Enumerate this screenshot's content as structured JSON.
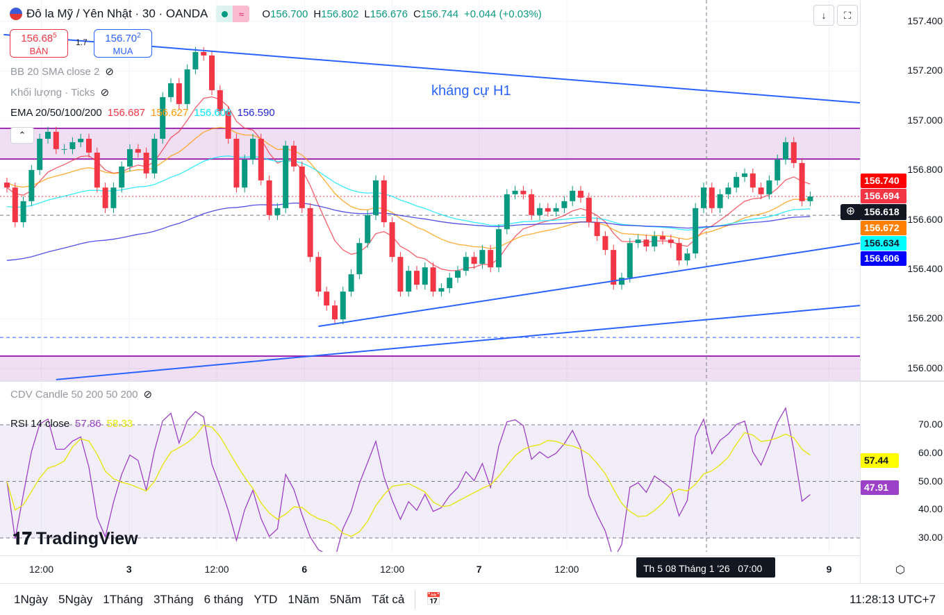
{
  "header": {
    "symbol": "Đô la Mỹ / Yên Nhật · 30 · OANDA",
    "open_label": "O",
    "open": "156.700",
    "high_label": "H",
    "high": "156.802",
    "low_label": "L",
    "low": "156.676",
    "close_label": "C",
    "close": "156.744",
    "change": "+0.044 (+0.03%)",
    "market_status_color": "#089981",
    "icons": [
      "flag-icon",
      "market-open-dot-icon",
      "delay-icon",
      "download-arrow-icon",
      "fullscreen-icon"
    ]
  },
  "trade": {
    "sell_price": "156.68",
    "sell_sup": "5",
    "sell_label": "BÁN",
    "spread": "1.7",
    "buy_price": "156.70",
    "buy_sup": "2",
    "buy_label": "MUA"
  },
  "legend": {
    "bb": "BB 20 SMA close 2",
    "volume": "Khối lượng · Ticks",
    "ema_title": "EMA 20/50/100/200",
    "ema20": "156.687",
    "ema50": "156.627",
    "ema100": "156.606",
    "ema200": "156.590",
    "cdv": "CDV Candle 50 200 50 200",
    "rsi_title": "RSI 14 close",
    "rsi_value": "57.86",
    "rsi_ma": "58.33"
  },
  "annotation": "kháng cự H1",
  "price_labels": [
    {
      "text": "156.740",
      "color": "#ff0000"
    },
    {
      "text": "156.694",
      "color": "#f23645"
    },
    {
      "text": "156.672",
      "color": "#ff7f00"
    },
    {
      "text": "156.634",
      "color": "#00ffff"
    },
    {
      "text": "156.606",
      "color": "#0000ff"
    }
  ],
  "crosshair_price": "156.618",
  "rsi_labels": [
    {
      "text": "57.44",
      "color": "#ffff00"
    },
    {
      "text": "47.91",
      "color": "#9c40c8"
    }
  ],
  "time_tooltip": "Th 5 08 Tháng 1 '26   07:00",
  "clock": "11:28:13 UTC+7",
  "ranges": [
    "1Ngày",
    "5Ngày",
    "1Tháng",
    "3Tháng",
    "6 tháng",
    "YTD",
    "1Năm",
    "5Năm",
    "Tất cả"
  ],
  "watermark": "TradingView",
  "chart_data": [
    {
      "type": "candlestick",
      "ylim": [
        155.95,
        157.45
      ],
      "y_ticks": [
        "157.400",
        "157.200",
        "157.000",
        "156.800",
        "156.600",
        "156.400",
        "156.200",
        "156.000"
      ],
      "x_ticks": [
        {
          "label": "12:00",
          "i": 4.2
        },
        {
          "label": "3",
          "i": 14.9,
          "bold": true
        },
        {
          "label": "12:00",
          "i": 25.6
        },
        {
          "label": "6",
          "i": 36.3,
          "bold": true
        },
        {
          "label": "12:00",
          "i": 47
        },
        {
          "label": "7",
          "i": 57.6,
          "bold": true
        },
        {
          "label": "12:00",
          "i": 68.3
        },
        {
          "label": "9",
          "i": 100.3,
          "bold": true
        }
      ],
      "up_color": "#089981",
      "down_color": "#f23645",
      "close": [
        156.73,
        156.59,
        156.675,
        156.801,
        156.927,
        156.955,
        156.885,
        156.885,
        156.913,
        156.927,
        156.871,
        156.73,
        156.647,
        156.73,
        156.815,
        156.885,
        156.871,
        156.787,
        156.927,
        157.095,
        157.151,
        157.067,
        157.207,
        157.277,
        157.263,
        157.123,
        157.039,
        156.927,
        156.73,
        156.843,
        156.927,
        156.759,
        156.619,
        156.647,
        156.899,
        156.815,
        156.647,
        156.45,
        156.31,
        156.254,
        156.198,
        156.31,
        156.38,
        156.506,
        156.619,
        156.759,
        156.59,
        156.45,
        156.31,
        156.394,
        156.338,
        156.408,
        156.31,
        156.324,
        156.366,
        156.394,
        156.45,
        156.422,
        156.478,
        156.408,
        156.562,
        156.703,
        156.717,
        156.703,
        156.619,
        156.647,
        156.633,
        156.647,
        156.675,
        156.717,
        156.689,
        156.59,
        156.534,
        156.478,
        156.338,
        156.366,
        156.506,
        156.52,
        156.492,
        156.534,
        156.52,
        156.506,
        156.436,
        156.464,
        156.647,
        156.73,
        156.647,
        156.703,
        156.73,
        156.773,
        156.787,
        156.73,
        156.703,
        156.759,
        156.843,
        156.913,
        156.829,
        156.675,
        156.694
      ],
      "ema_periods": [
        20,
        50,
        100,
        200
      ],
      "ema_colors": [
        "#f23645",
        "#ff9800",
        "#00e5ff",
        "#2424e0"
      ],
      "trendlines": [
        {
          "from": {
            "i": -0.4,
            "p": 157.347
          },
          "to": {
            "i": 104.1,
            "p": 157.072
          },
          "color": "#2962ff"
        },
        {
          "from": {
            "i": 38,
            "p": 156.17
          },
          "to": {
            "i": 104.1,
            "p": 156.506
          },
          "color": "#2962ff"
        },
        {
          "from": {
            "i": 6,
            "p": 155.955
          },
          "to": {
            "i": 104.1,
            "p": 156.254
          },
          "color": "#2962ff"
        }
      ],
      "zones": [
        {
          "top": 156.969,
          "bottom": 156.845,
          "color": "#9c27b0"
        },
        {
          "top": 156.05,
          "bottom": 155.9,
          "color": "#9c27b0"
        }
      ],
      "hlines": [
        {
          "p": 156.125,
          "color": "#2962ff",
          "style": "dashed"
        },
        {
          "p": 156.694,
          "color": "#f23645",
          "style": "dotted"
        },
        {
          "p": 156.618,
          "color": "#787b86",
          "style": "dashed"
        }
      ]
    },
    {
      "type": "line",
      "title": "RSI 14 close",
      "ylim": [
        25,
        75
      ],
      "y_ticks": [
        "70.00",
        "60.00",
        "50.00",
        "40.00",
        "30.00"
      ],
      "bands": [
        70,
        50,
        30
      ],
      "series": [
        {
          "color": "#9c40c8"
        },
        {
          "color": "#e6e600"
        }
      ]
    }
  ]
}
